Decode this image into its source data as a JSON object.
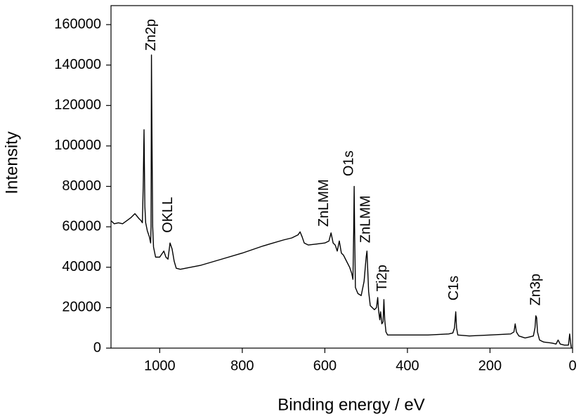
{
  "chart_data": {
    "type": "line",
    "xlabel": "Binding energy / eV",
    "ylabel": "Intensity",
    "xlim": [
      1118,
      0
    ],
    "ylim": [
      0,
      169400
    ],
    "xticks": [
      1000,
      800,
      600,
      400,
      200,
      0
    ],
    "yticks": [
      0,
      20000,
      40000,
      60000,
      80000,
      100000,
      120000,
      140000,
      160000
    ],
    "color": "#000000",
    "x": [
      1118,
      1110,
      1100,
      1090,
      1080,
      1070,
      1060,
      1050,
      1045,
      1042,
      1040,
      1038,
      1036,
      1034,
      1030,
      1025,
      1022,
      1021,
      1020,
      1019,
      1017,
      1015,
      1010,
      1000,
      995,
      990,
      985,
      980,
      975,
      970,
      965,
      960,
      950,
      900,
      850,
      800,
      750,
      700,
      680,
      665,
      660,
      655,
      650,
      640,
      620,
      600,
      590,
      585,
      580,
      575,
      570,
      565,
      560,
      555,
      550,
      540,
      535,
      532,
      530,
      529,
      528,
      526,
      520,
      512,
      505,
      500,
      498,
      496,
      494,
      490,
      480,
      475,
      472,
      470,
      467,
      465,
      462,
      459,
      457,
      455,
      452,
      448,
      420,
      350,
      300,
      290,
      286,
      283,
      281,
      278,
      250,
      200,
      150,
      142,
      139,
      136,
      130,
      115,
      105,
      95,
      91,
      89,
      87,
      85,
      80,
      70,
      50,
      40,
      35,
      30,
      20,
      10,
      7,
      5,
      3
    ],
    "values": [
      63000,
      61500,
      62000,
      61500,
      63000,
      64500,
      66500,
      64000,
      63000,
      62000,
      80000,
      108000,
      70000,
      62000,
      58000,
      55000,
      52000,
      60000,
      145000,
      110000,
      60000,
      50000,
      45000,
      45000,
      46500,
      48000,
      45000,
      44000,
      52000,
      49000,
      43000,
      39500,
      39000,
      41000,
      44000,
      47000,
      50500,
      53500,
      54500,
      56000,
      57500,
      55000,
      52000,
      51000,
      51500,
      52000,
      53000,
      57000,
      52000,
      51000,
      48000,
      53000,
      47000,
      46000,
      44000,
      40000,
      37000,
      34000,
      60000,
      80000,
      60000,
      30000,
      27000,
      26000,
      33000,
      45000,
      48000,
      38000,
      28000,
      21000,
      19000,
      20000,
      25000,
      19000,
      14000,
      18000,
      12000,
      13000,
      24000,
      14000,
      8000,
      6500,
      6500,
      6500,
      7000,
      7500,
      10000,
      18000,
      10000,
      6500,
      6000,
      6500,
      7000,
      8000,
      12000,
      8000,
      6000,
      5000,
      5500,
      6000,
      10000,
      16000,
      15000,
      8000,
      4000,
      3000,
      2500,
      2000,
      4000,
      2000,
      1500,
      1500,
      7000,
      3000,
      0
    ],
    "annotations": [
      {
        "text": "Zn2p",
        "x": 1020,
        "y": 147000
      },
      {
        "text": "OKLL",
        "x": 979,
        "y": 57000
      },
      {
        "text": "ZnLMM",
        "x": 601,
        "y": 60000
      },
      {
        "text": "O1s",
        "x": 541,
        "y": 85000
      },
      {
        "text": "ZnLMM",
        "x": 500,
        "y": 52000
      },
      {
        "text": "Ti2p",
        "x": 460,
        "y": 28000
      },
      {
        "text": "C1s",
        "x": 286,
        "y": 23500
      },
      {
        "text": "Zn3p",
        "x": 88,
        "y": 21000
      }
    ]
  }
}
